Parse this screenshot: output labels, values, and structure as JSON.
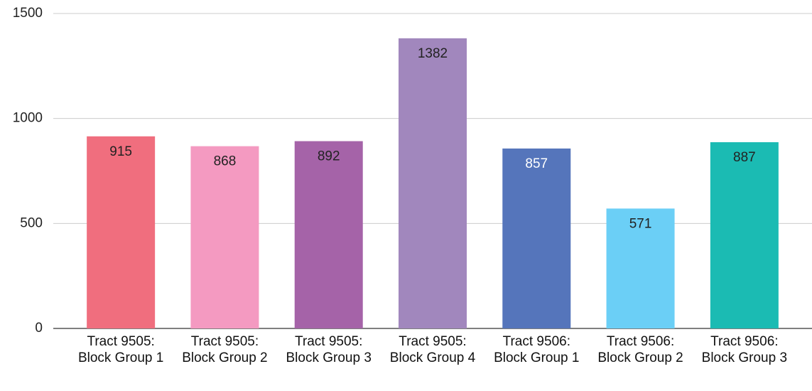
{
  "chart_data": {
    "type": "bar",
    "categories": [
      "Tract 9505: Block Group 1",
      "Tract 9505: Block Group 2",
      "Tract 9505: Block Group 3",
      "Tract 9505: Block Group 4",
      "Tract 9506: Block Group 1",
      "Tract 9506: Block Group 2",
      "Tract 9506: Block Group 3"
    ],
    "values": [
      915,
      868,
      892,
      1382,
      857,
      571,
      887
    ],
    "colors": [
      "#f06e7e",
      "#f49ac1",
      "#a563a8",
      "#a187bd",
      "#5575bb",
      "#6bcff6",
      "#1bbbb3"
    ],
    "label_colors": [
      "#222222",
      "#222222",
      "#222222",
      "#222222",
      "#ffffff",
      "#222222",
      "#222222"
    ],
    "ylim": [
      0,
      1500
    ],
    "yticks": [
      0,
      500,
      1000,
      1500
    ],
    "grid": true
  }
}
